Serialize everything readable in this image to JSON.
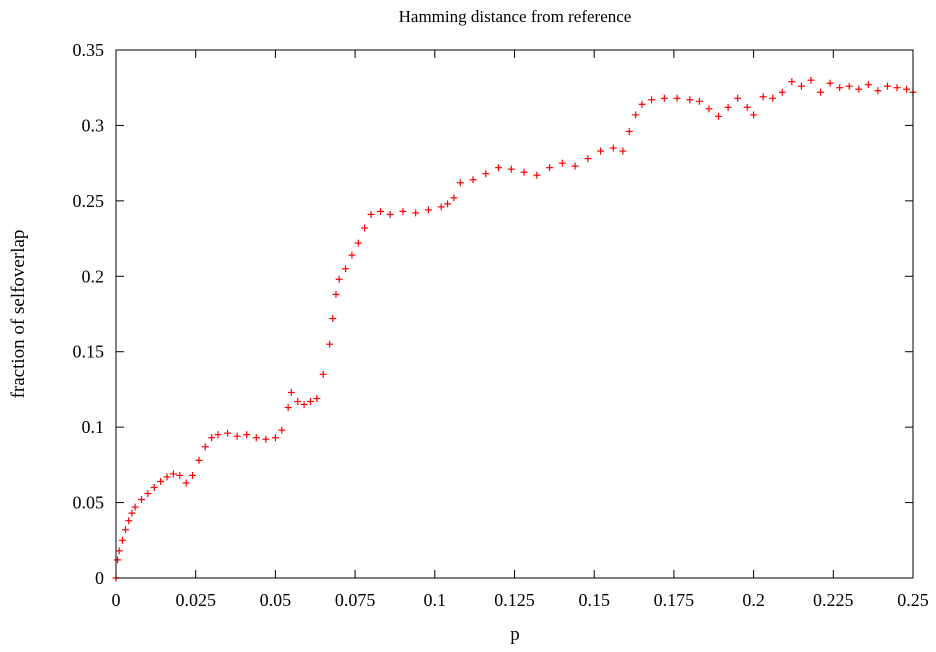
{
  "chart_data": {
    "type": "scatter",
    "title": "Hamming distance from reference",
    "xlabel": "p",
    "ylabel": "fraction of selfoverlap",
    "xlim": [
      0,
      0.25
    ],
    "ylim": [
      0,
      0.35
    ],
    "xticks": [
      "0",
      "0.025",
      "0.05",
      "0.075",
      "0.1",
      "0.125",
      "0.15",
      "0.175",
      "0.2",
      "0.225",
      "0.25"
    ],
    "yticks": [
      "0",
      "0.05",
      "0.1",
      "0.15",
      "0.2",
      "0.25",
      "0.3",
      "0.35"
    ],
    "grid": false,
    "legend": "none",
    "marker": "plus",
    "series_color": "#ff0000",
    "series": [
      {
        "points": [
          [
            0.0,
            0.0
          ],
          [
            0.0005,
            0.012
          ],
          [
            0.001,
            0.018
          ],
          [
            0.002,
            0.025
          ],
          [
            0.003,
            0.032
          ],
          [
            0.004,
            0.038
          ],
          [
            0.005,
            0.043
          ],
          [
            0.006,
            0.047
          ],
          [
            0.008,
            0.052
          ],
          [
            0.01,
            0.056
          ],
          [
            0.012,
            0.06
          ],
          [
            0.014,
            0.064
          ],
          [
            0.016,
            0.067
          ],
          [
            0.018,
            0.069
          ],
          [
            0.02,
            0.068
          ],
          [
            0.022,
            0.063
          ],
          [
            0.024,
            0.068
          ],
          [
            0.026,
            0.078
          ],
          [
            0.028,
            0.087
          ],
          [
            0.03,
            0.093
          ],
          [
            0.032,
            0.095
          ],
          [
            0.035,
            0.096
          ],
          [
            0.038,
            0.094
          ],
          [
            0.041,
            0.095
          ],
          [
            0.044,
            0.093
          ],
          [
            0.047,
            0.092
          ],
          [
            0.05,
            0.093
          ],
          [
            0.052,
            0.098
          ],
          [
            0.054,
            0.113
          ],
          [
            0.055,
            0.123
          ],
          [
            0.057,
            0.117
          ],
          [
            0.059,
            0.115
          ],
          [
            0.061,
            0.117
          ],
          [
            0.063,
            0.119
          ],
          [
            0.065,
            0.135
          ],
          [
            0.067,
            0.155
          ],
          [
            0.068,
            0.172
          ],
          [
            0.069,
            0.188
          ],
          [
            0.07,
            0.198
          ],
          [
            0.072,
            0.205
          ],
          [
            0.074,
            0.214
          ],
          [
            0.076,
            0.222
          ],
          [
            0.078,
            0.232
          ],
          [
            0.08,
            0.241
          ],
          [
            0.083,
            0.243
          ],
          [
            0.086,
            0.241
          ],
          [
            0.09,
            0.243
          ],
          [
            0.094,
            0.242
          ],
          [
            0.098,
            0.244
          ],
          [
            0.102,
            0.246
          ],
          [
            0.104,
            0.248
          ],
          [
            0.106,
            0.252
          ],
          [
            0.108,
            0.262
          ],
          [
            0.112,
            0.264
          ],
          [
            0.116,
            0.268
          ],
          [
            0.12,
            0.272
          ],
          [
            0.124,
            0.271
          ],
          [
            0.128,
            0.269
          ],
          [
            0.132,
            0.267
          ],
          [
            0.136,
            0.272
          ],
          [
            0.14,
            0.275
          ],
          [
            0.144,
            0.273
          ],
          [
            0.148,
            0.278
          ],
          [
            0.152,
            0.283
          ],
          [
            0.156,
            0.285
          ],
          [
            0.159,
            0.283
          ],
          [
            0.161,
            0.296
          ],
          [
            0.163,
            0.307
          ],
          [
            0.165,
            0.314
          ],
          [
            0.168,
            0.317
          ],
          [
            0.172,
            0.318
          ],
          [
            0.176,
            0.318
          ],
          [
            0.18,
            0.317
          ],
          [
            0.183,
            0.316
          ],
          [
            0.186,
            0.311
          ],
          [
            0.189,
            0.306
          ],
          [
            0.192,
            0.312
          ],
          [
            0.195,
            0.318
          ],
          [
            0.198,
            0.312
          ],
          [
            0.2,
            0.307
          ],
          [
            0.203,
            0.319
          ],
          [
            0.206,
            0.318
          ],
          [
            0.209,
            0.322
          ],
          [
            0.212,
            0.329
          ],
          [
            0.215,
            0.326
          ],
          [
            0.218,
            0.33
          ],
          [
            0.221,
            0.322
          ],
          [
            0.224,
            0.328
          ],
          [
            0.227,
            0.325
          ],
          [
            0.23,
            0.326
          ],
          [
            0.233,
            0.324
          ],
          [
            0.236,
            0.327
          ],
          [
            0.239,
            0.323
          ],
          [
            0.242,
            0.326
          ],
          [
            0.245,
            0.325
          ],
          [
            0.248,
            0.324
          ],
          [
            0.25,
            0.322
          ]
        ]
      }
    ]
  }
}
